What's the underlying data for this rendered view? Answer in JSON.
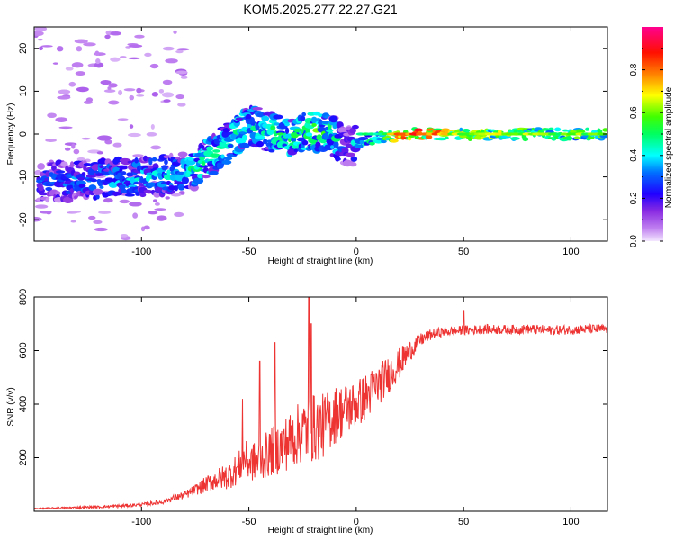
{
  "chart_data": [
    {
      "type": "heatmap",
      "title": "KOM5.2025.277.22.27.G21",
      "xlabel": "Height of straight line (km)",
      "ylabel": "Frequency (Hz)",
      "xlim": [
        -150,
        117
      ],
      "ylim": [
        -25,
        25
      ],
      "xticks": [
        -100,
        -50,
        0,
        50,
        100
      ],
      "yticks": [
        -20,
        -10,
        0,
        10,
        20
      ],
      "colorbar": {
        "label": "Normalized spectral amplitude",
        "range": [
          0,
          1
        ],
        "ticks": [
          "0.0",
          "0.2",
          "0.4",
          "0.6",
          "0.8"
        ],
        "colors": [
          "#e8c8f8",
          "#8a2be2",
          "#2000ff",
          "#00ffff",
          "#00ff40",
          "#ffff00",
          "#ff2000",
          "#ff0080"
        ]
      },
      "ridge": {
        "x": [
          -150,
          -130,
          -115,
          -100,
          -85,
          -75,
          -70,
          -62,
          -55,
          -50,
          -45,
          -38,
          -32,
          -25,
          -20,
          -12,
          -8,
          -5,
          -2,
          0,
          10,
          25,
          50,
          75,
          100,
          117
        ],
        "freq": [
          -11,
          -11,
          -10.5,
          -10,
          -9.5,
          -8,
          -6,
          -3,
          0,
          2.5,
          1.5,
          0,
          -1,
          0.5,
          0.8,
          0,
          -2,
          -3,
          -3,
          -2,
          -1,
          0,
          0,
          0,
          0,
          0
        ],
        "amplitude": [
          0.3,
          0.35,
          0.4,
          0.4,
          0.4,
          0.45,
          0.5,
          0.45,
          0.5,
          0.45,
          0.45,
          0.5,
          0.5,
          0.5,
          0.55,
          0.5,
          0.4,
          0.3,
          0.3,
          0.4,
          0.5,
          0.9,
          0.65,
          0.6,
          0.6,
          0.55
        ]
      }
    },
    {
      "type": "line",
      "xlabel": "Height of straight line (km)",
      "ylabel": "SNR (v/v)",
      "xlim": [
        -150,
        117
      ],
      "ylim": [
        0,
        800
      ],
      "xticks": [
        -100,
        -50,
        0,
        50,
        100
      ],
      "yticks": [
        200,
        400,
        600,
        800
      ],
      "color": "#ee3333",
      "series": [
        {
          "name": "SNR",
          "x": [
            -150,
            -140,
            -130,
            -120,
            -110,
            -100,
            -90,
            -85,
            -80,
            -75,
            -70,
            -65,
            -60,
            -55,
            -52,
            -50,
            -45,
            -40,
            -35,
            -30,
            -25,
            -20,
            -15,
            -10,
            -5,
            0,
            5,
            10,
            15,
            20,
            25,
            30,
            35,
            40,
            50,
            60,
            70,
            80,
            90,
            100,
            110,
            117
          ],
          "y": [
            10,
            12,
            14,
            16,
            20,
            25,
            35,
            50,
            60,
            80,
            100,
            120,
            130,
            160,
            200,
            180,
            190,
            220,
            240,
            270,
            300,
            310,
            320,
            360,
            380,
            400,
            430,
            470,
            510,
            550,
            600,
            640,
            660,
            670,
            675,
            680,
            678,
            680,
            676,
            678,
            680,
            680
          ],
          "noise": [
            2,
            3,
            4,
            5,
            6,
            6,
            8,
            12,
            15,
            20,
            30,
            40,
            50,
            60,
            70,
            70,
            80,
            90,
            100,
            110,
            120,
            130,
            120,
            110,
            100,
            90,
            90,
            80,
            70,
            60,
            40,
            25,
            20,
            18,
            18,
            18,
            18,
            18,
            18,
            18,
            18,
            18
          ],
          "spikes": [
            {
              "x": -53,
              "y": 420
            },
            {
              "x": -45,
              "y": 560
            },
            {
              "x": -38,
              "y": 630
            },
            {
              "x": -22,
              "y": 800
            },
            {
              "x": -21,
              "y": 700
            },
            {
              "x": 50,
              "y": 750
            }
          ]
        }
      ]
    }
  ]
}
